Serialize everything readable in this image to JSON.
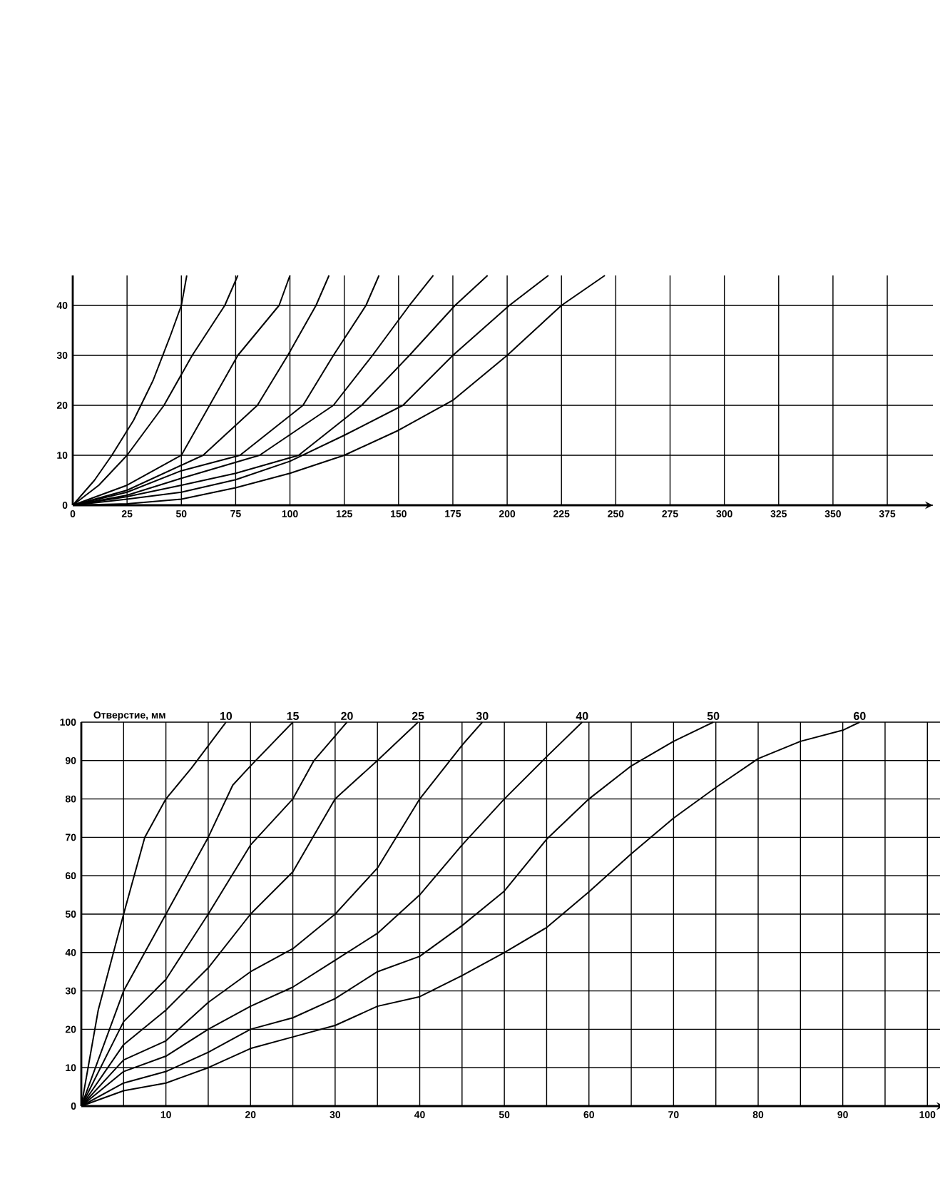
{
  "chart_data": [
    {
      "type": "line",
      "xlim": [
        0,
        396
      ],
      "ylim": [
        0,
        46
      ],
      "xticks": [
        0,
        25,
        50,
        75,
        100,
        125,
        150,
        175,
        200,
        225,
        250,
        275,
        300,
        325,
        350,
        375
      ],
      "yticks": [
        0,
        10,
        20,
        30,
        40
      ],
      "grid": true,
      "marker": "none",
      "line_style": "solid",
      "series": [
        {
          "color": "#000000",
          "x": [
            0,
            10,
            18,
            28,
            37,
            45,
            50,
            52.5
          ],
          "values": [
            0,
            5,
            10,
            17,
            25,
            34,
            40,
            46
          ]
        },
        {
          "color": "#000000",
          "x": [
            0,
            12,
            25,
            42,
            55,
            70,
            76
          ],
          "values": [
            0,
            4,
            10,
            20,
            30,
            40,
            46
          ]
        },
        {
          "color": "#000000",
          "x": [
            0,
            25,
            50,
            63,
            76,
            95,
            100
          ],
          "values": [
            0,
            4,
            10,
            20,
            30,
            40,
            46
          ]
        },
        {
          "color": "#000000",
          "x": [
            0,
            25,
            50,
            60,
            85,
            99,
            112,
            118
          ],
          "values": [
            0,
            3,
            8,
            10,
            20,
            30,
            40,
            46
          ]
        },
        {
          "color": "#000000",
          "x": [
            0,
            25,
            50,
            77,
            106,
            120,
            135,
            141
          ],
          "values": [
            0,
            2.6,
            6.9,
            10,
            20,
            30,
            40,
            46
          ]
        },
        {
          "color": "#000000",
          "x": [
            0,
            25,
            50,
            86,
            120,
            138,
            155,
            166
          ],
          "values": [
            0,
            2,
            5.4,
            10,
            20,
            30,
            40,
            46
          ]
        },
        {
          "color": "#000000",
          "x": [
            0,
            25,
            50,
            75,
            104,
            133,
            155,
            176,
            191
          ],
          "values": [
            0,
            1.7,
            4,
            6.4,
            10,
            20,
            30,
            40,
            46
          ]
        },
        {
          "color": "#000000",
          "x": [
            0,
            25,
            50,
            75,
            100,
            125,
            152,
            175,
            201,
            219
          ],
          "values": [
            0,
            1.2,
            2.6,
            5.1,
            8.8,
            14,
            20,
            30,
            40,
            46
          ]
        },
        {
          "color": "#000000",
          "x": [
            0,
            25,
            50,
            75,
            100,
            125,
            150,
            175,
            200,
            225,
            245
          ],
          "values": [
            0,
            0.3,
            1.2,
            3.5,
            6.4,
            10,
            15,
            21,
            30,
            40,
            46
          ]
        }
      ]
    },
    {
      "type": "line",
      "xlim": [
        0,
        102
      ],
      "ylim": [
        0,
        100
      ],
      "xticks": [
        {
          "value": 0,
          "label": null
        },
        {
          "value": 5,
          "label": null
        },
        10,
        {
          "value": 15,
          "label": null
        },
        20,
        {
          "value": 25,
          "label": null
        },
        30,
        {
          "value": 35,
          "label": null
        },
        40,
        {
          "value": 45,
          "label": null
        },
        50,
        {
          "value": 55,
          "label": null
        },
        60,
        {
          "value": 65,
          "label": null
        },
        70,
        {
          "value": 75,
          "label": null
        },
        80,
        {
          "value": 85,
          "label": null
        },
        90,
        {
          "value": 95,
          "label": null
        },
        100
      ],
      "yticks": [
        0,
        10,
        20,
        30,
        40,
        50,
        60,
        70,
        80,
        90,
        100
      ],
      "grid": true,
      "marker": "none",
      "line_style": "solid",
      "annotations": [
        "Отверстие, мм"
      ],
      "series": [
        {
          "name": "10",
          "color": "#000000",
          "x": [
            0,
            2,
            5,
            7.5,
            10,
            13,
            17.1
          ],
          "values": [
            0,
            25,
            50,
            70,
            80,
            88,
            100
          ]
        },
        {
          "name": "15",
          "color": "#000000",
          "x": [
            0,
            5,
            10,
            15,
            17.9,
            20,
            25
          ],
          "values": [
            0,
            30,
            50,
            70,
            83.6,
            88.6,
            100
          ]
        },
        {
          "name": "20",
          "color": "#000000",
          "x": [
            0,
            5,
            10,
            15,
            20,
            25,
            27.5,
            31.4
          ],
          "values": [
            0,
            22,
            33,
            50,
            68,
            80,
            90,
            100
          ]
        },
        {
          "name": "25",
          "color": "#000000",
          "x": [
            0,
            5,
            10,
            15,
            20,
            25,
            30,
            35,
            39.8
          ],
          "values": [
            0,
            16,
            25,
            36,
            50,
            61,
            80,
            90,
            100
          ]
        },
        {
          "name": "30",
          "color": "#000000",
          "x": [
            0,
            5,
            10,
            15,
            20,
            25,
            30,
            35,
            40,
            45,
            47.4
          ],
          "values": [
            0,
            12,
            17,
            27,
            35,
            41,
            50,
            62,
            80,
            94,
            100
          ]
        },
        {
          "name": "40",
          "color": "#000000",
          "x": [
            0,
            5,
            10,
            15,
            20,
            25,
            30,
            35,
            40,
            45,
            50,
            55,
            59.2
          ],
          "values": [
            0,
            9,
            13,
            20,
            26,
            31,
            38,
            45,
            55,
            68,
            80,
            91,
            100
          ]
        },
        {
          "name": "50",
          "color": "#000000",
          "x": [
            0,
            5,
            10,
            15,
            20,
            25,
            30,
            35,
            40,
            45,
            50,
            55,
            60,
            65,
            70,
            74.7
          ],
          "values": [
            0,
            6,
            9,
            14,
            20,
            23,
            28,
            35,
            39,
            47,
            56,
            69.5,
            80,
            88.6,
            95,
            100
          ]
        },
        {
          "name": "60",
          "color": "#000000",
          "x": [
            0,
            5,
            10,
            15,
            20,
            25,
            30,
            35,
            40,
            45,
            50,
            55,
            60,
            65,
            70,
            75,
            80,
            85,
            90,
            92
          ],
          "values": [
            0,
            4,
            6,
            10,
            15,
            18,
            21,
            26,
            28.5,
            34,
            40,
            46.5,
            55.8,
            65.7,
            75,
            83,
            90.5,
            95,
            97.9,
            100
          ]
        }
      ]
    }
  ]
}
